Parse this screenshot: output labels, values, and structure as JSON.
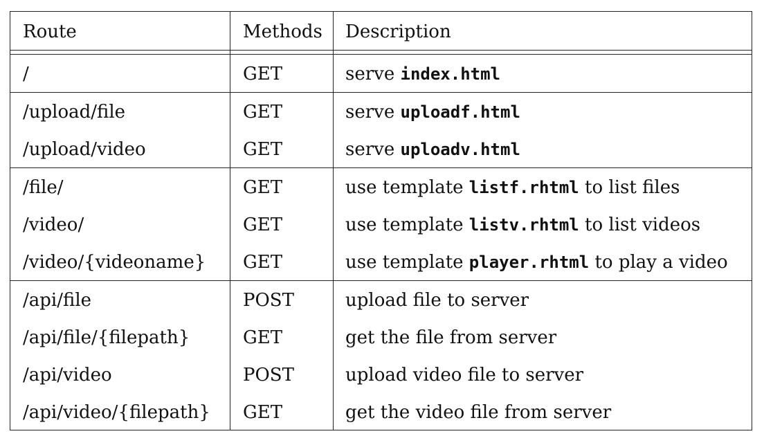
{
  "header": {
    "route": "Route",
    "methods": "Methods",
    "description": "Description"
  },
  "rows": [
    {
      "route": "/",
      "method": "GET",
      "pre": "serve ",
      "code": "index.html",
      "post": ""
    },
    {
      "route": "/upload/file",
      "method": "GET",
      "pre": "serve ",
      "code": "uploadf.html",
      "post": ""
    },
    {
      "route": "/upload/video",
      "method": "GET",
      "pre": "serve ",
      "code": "uploadv.html",
      "post": ""
    },
    {
      "route": "/file/",
      "method": "GET",
      "pre": "use template ",
      "code": "listf.rhtml",
      "post": " to list files"
    },
    {
      "route": "/video/",
      "method": "GET",
      "pre": "use template ",
      "code": "listv.rhtml",
      "post": " to list videos"
    },
    {
      "route": "/video/{videoname}",
      "method": "GET",
      "pre": "use template ",
      "code": "player.rhtml",
      "post": " to play a video"
    },
    {
      "route": "/api/file",
      "method": "POST",
      "pre": "upload file to server",
      "code": "",
      "post": ""
    },
    {
      "route": "/api/file/{filepath}",
      "method": "GET",
      "pre": "get the file from server",
      "code": "",
      "post": ""
    },
    {
      "route": "/api/video",
      "method": "POST",
      "pre": "upload video file to server",
      "code": "",
      "post": ""
    },
    {
      "route": "/api/video/{filepath}",
      "method": "GET",
      "pre": "get the video file from server",
      "code": "",
      "post": ""
    }
  ]
}
